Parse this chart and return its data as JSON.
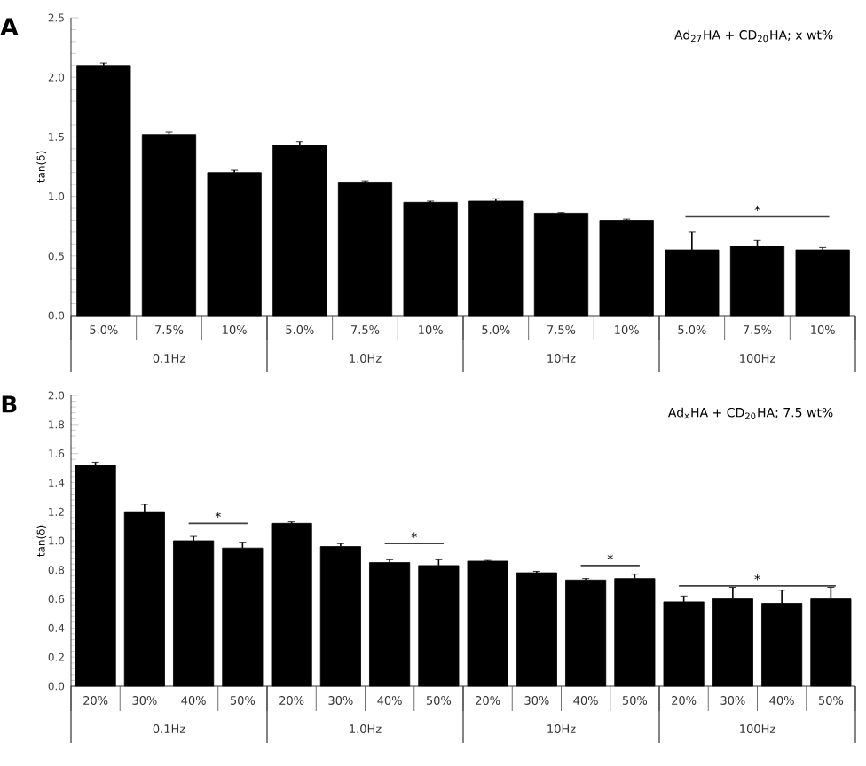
{
  "chart_data": [
    {
      "type": "bar",
      "title": "A",
      "subtitle": "Ad$_{27}$HA + CD$_{20}$HA; x wt%",
      "ylabel": "tan(δ)",
      "categories": [
        "5.0%",
        "7.5%",
        "10%",
        "5.0%",
        "7.5%",
        "10%",
        "5.0%",
        "7.5%",
        "10%",
        "5.0%",
        "7.5%",
        "10%"
      ],
      "values": [
        2.1,
        1.52,
        1.2,
        1.43,
        1.12,
        0.95,
        0.96,
        0.86,
        0.8,
        0.55,
        0.58,
        0.55
      ],
      "errors": [
        0.02,
        0.02,
        0.02,
        0.03,
        0.01,
        0.01,
        0.02,
        0.005,
        0.01,
        0.15,
        0.05,
        0.02
      ],
      "color": "#000000",
      "ylim": [
        0,
        2.5
      ],
      "yticks": [
        {
          "value": 0,
          "label": "0.0"
        },
        0.5,
        {
          "value": 1,
          "label": "1.0"
        },
        1.5,
        {
          "value": 2,
          "label": "2.0"
        },
        2.5
      ],
      "annotations": [
        "0.1Hz",
        "1.0Hz",
        "10Hz",
        "100Hz",
        "*"
      ]
    },
    {
      "type": "bar",
      "title": "B",
      "subtitle": "Ad$_{x}$HA + CD$_{20}$HA; 7.5 wt%",
      "ylabel": "tan(δ)",
      "categories": [
        "20%",
        "30%",
        "40%",
        "50%",
        "20%",
        "30%",
        "40%",
        "50%",
        "20%",
        "30%",
        "40%",
        "50%",
        "20%",
        "30%",
        "40%",
        "50%"
      ],
      "values": [
        1.52,
        1.2,
        1.0,
        0.95,
        1.12,
        0.96,
        0.85,
        0.83,
        0.86,
        0.78,
        0.73,
        0.74,
        0.58,
        0.6,
        0.57,
        0.6
      ],
      "errors": [
        0.02,
        0.05,
        0.03,
        0.04,
        0.01,
        0.02,
        0.02,
        0.04,
        0.005,
        0.01,
        0.01,
        0.03,
        0.04,
        0.08,
        0.09,
        0.08
      ],
      "color": "#000000",
      "ylim": [
        0,
        2.0
      ],
      "yticks": [
        {
          "value": 0,
          "label": "0.0"
        },
        0.2,
        0.4,
        0.6,
        0.8,
        {
          "value": 1,
          "label": "1.0"
        },
        1.2,
        1.4,
        1.6,
        1.8,
        {
          "value": 2,
          "label": "2.0"
        }
      ],
      "annotations": [
        "0.1Hz",
        "1.0Hz",
        "10Hz",
        "100Hz",
        "*",
        "*",
        "*",
        "*"
      ]
    }
  ]
}
